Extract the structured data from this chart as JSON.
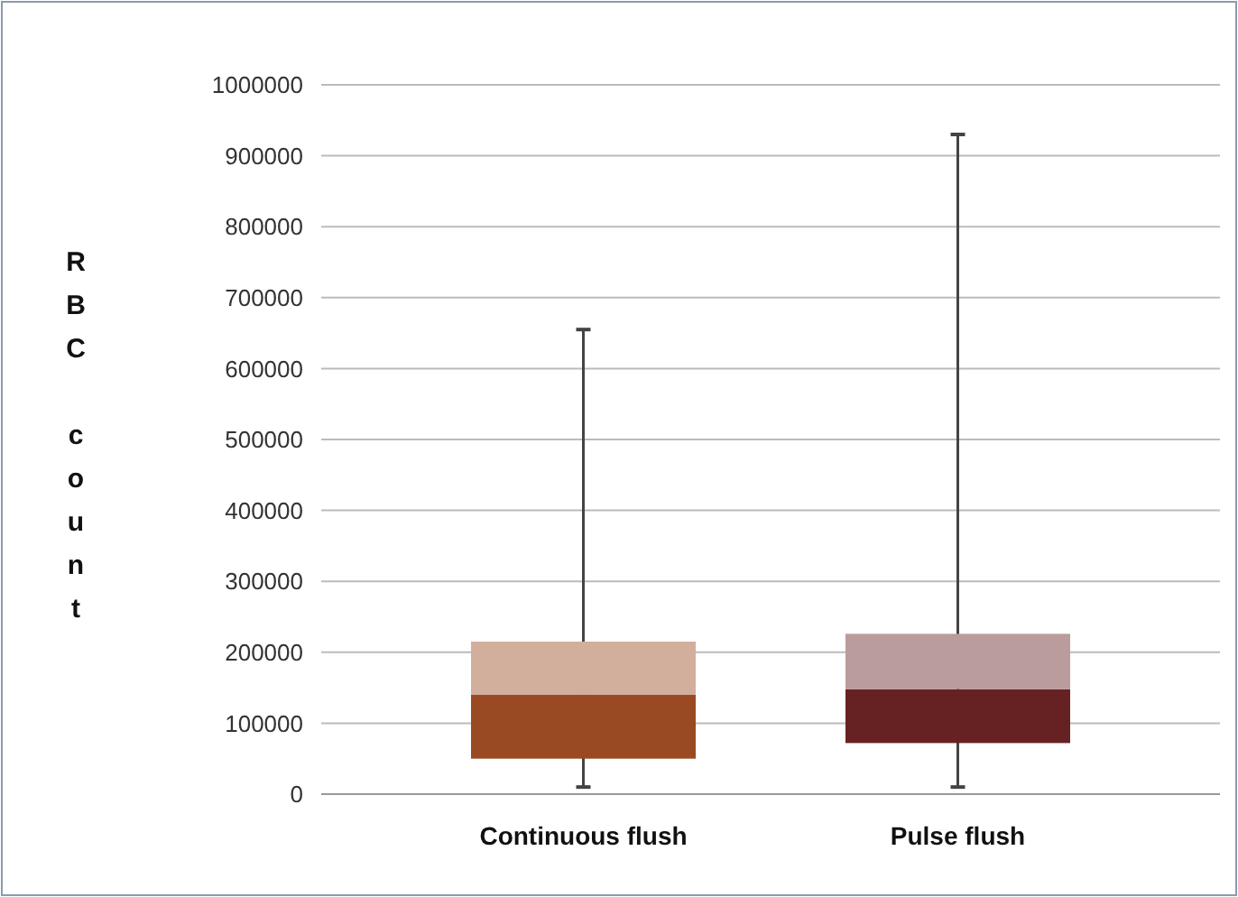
{
  "chart_data": {
    "type": "box",
    "ylabel": "RBC count",
    "categories": [
      "Continuous flush",
      "Pulse flush"
    ],
    "boxes": [
      {
        "low": 10000,
        "q1": 50000,
        "median": 140000,
        "q3": 215000,
        "high": 655000
      },
      {
        "low": 10000,
        "q1": 72000,
        "median": 148000,
        "q3": 226000,
        "high": 930000
      }
    ],
    "colors": [
      "#9a4a22",
      "#662222"
    ],
    "ylim": [
      0,
      1000000
    ],
    "yticks": [
      0,
      100000,
      200000,
      300000,
      400000,
      500000,
      600000,
      700000,
      800000,
      900000,
      1000000
    ],
    "grid": "y"
  }
}
